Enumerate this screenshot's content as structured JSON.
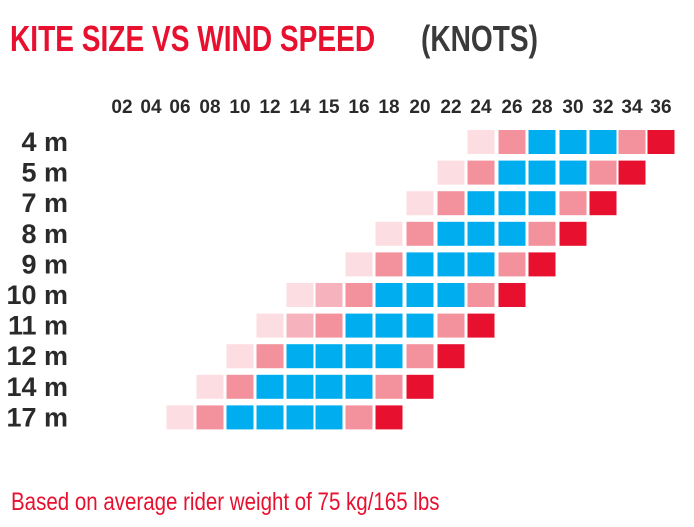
{
  "title": "KITE SIZE VS WIND SPEED",
  "unit_label": "(KNOTS)",
  "footnote": "Based on average rider weight of 75 kg/165 lbs",
  "colors": {
    "title": "#e8102f",
    "unit": "#3a3a3a",
    "footnote": "#e8102f",
    "level_1": "#fcdde1",
    "level_2": "#f3929d",
    "level_2_alt": "#f7b3bd",
    "level_3": "#00aeef",
    "level_4": "#e8102f"
  },
  "chart_data": {
    "type": "heatmap",
    "title": "KITE SIZE VS WIND SPEED",
    "unit": "(KNOTS)",
    "x_ticks": [
      "02",
      "04",
      "06",
      "08",
      "10",
      "12",
      "14",
      "15",
      "16",
      "18",
      "20",
      "22",
      "24",
      "26",
      "28",
      "30",
      "32",
      "34",
      "36"
    ],
    "level_legend": {
      "1": "very light pink",
      "2": "light pink",
      "2b": "pale pink",
      "3": "blue",
      "4": "red"
    },
    "rows": [
      {
        "label": "4 m",
        "start_tick": "24",
        "cells": [
          "1",
          "2",
          "3",
          "3",
          "3",
          "2",
          "4"
        ]
      },
      {
        "label": "5 m",
        "start_tick": "22",
        "cells": [
          "1",
          "2",
          "3",
          "3",
          "3",
          "2",
          "4"
        ]
      },
      {
        "label": "7 m",
        "start_tick": "20",
        "cells": [
          "1",
          "2",
          "3",
          "3",
          "3",
          "2",
          "4"
        ]
      },
      {
        "label": "8 m",
        "start_tick": "18",
        "cells": [
          "1",
          "2",
          "3",
          "3",
          "3",
          "2",
          "4"
        ]
      },
      {
        "label": "9 m",
        "start_tick": "16",
        "cells": [
          "1",
          "2",
          "3",
          "3",
          "3",
          "2",
          "4"
        ]
      },
      {
        "label": "10 m",
        "start_tick": "14",
        "cells": [
          "1",
          "2b",
          "2",
          "3",
          "3",
          "3",
          "2",
          "4"
        ]
      },
      {
        "label": "11 m",
        "start_tick": "12",
        "cells": [
          "1",
          "2b",
          "2",
          "3",
          "3",
          "3",
          "2",
          "4"
        ]
      },
      {
        "label": "12 m",
        "start_tick": "10",
        "cells": [
          "1",
          "2",
          "3",
          "3",
          "3",
          "3",
          "2",
          "4"
        ]
      },
      {
        "label": "14 m",
        "start_tick": "08",
        "cells": [
          "1",
          "2",
          "3",
          "3",
          "3",
          "3",
          "2",
          "4"
        ]
      },
      {
        "label": "17 m",
        "start_tick": "06",
        "cells": [
          "1",
          "2",
          "3",
          "3",
          "3",
          "3",
          "2",
          "4"
        ]
      }
    ]
  }
}
